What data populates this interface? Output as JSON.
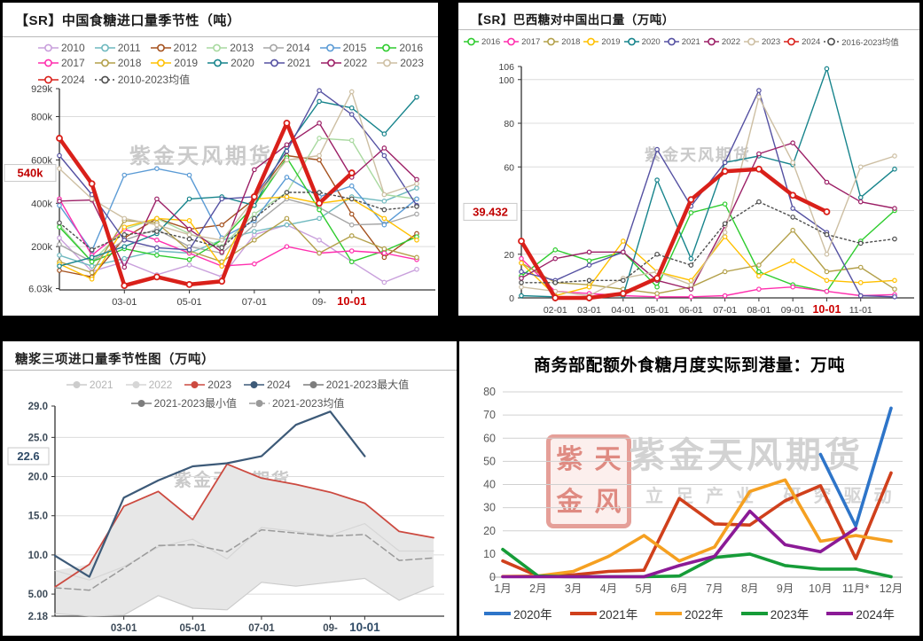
{
  "watermark": {
    "brand": "紫金天风期货",
    "slogan": "立足产业 研究驱动",
    "seal_chars": [
      "紫",
      "天",
      "金",
      "风"
    ]
  },
  "chart_data": [
    {
      "id": "china-sugar-import-seasonality",
      "type": "line",
      "title": "【SR】中国食糖进口量季节性（吨）",
      "unit": "吨 (values in thousands)",
      "current": {
        "label": "540k",
        "value": 540,
        "color": "#c00000"
      },
      "y_axis": {
        "min": 0,
        "max": 929,
        "grid": [
          800,
          600,
          400,
          200
        ],
        "ticks": [
          {
            "v": 929,
            "l": "929k"
          },
          {
            "v": 800,
            "l": "800k"
          },
          {
            "v": 600,
            "l": "600k"
          },
          {
            "v": 400,
            "l": "400k"
          },
          {
            "v": 200,
            "l": "200k"
          },
          {
            "v": 6.03,
            "l": "6.03k"
          }
        ]
      },
      "x_axis": {
        "hl_color": "#cc0000",
        "ticks": [
          {
            "m": 3,
            "label": "03-01"
          },
          {
            "m": 5,
            "label": "05-01"
          },
          {
            "m": 7,
            "label": "07-01"
          },
          {
            "m": 9,
            "label": "09-"
          },
          {
            "m": 10,
            "label": "10-01",
            "hl": true
          }
        ]
      },
      "series": [
        {
          "name": "2010",
          "color": "#c9a0dc",
          "markers": true,
          "values": [
            240,
            85,
            130,
            70,
            115,
            60,
            255,
            300,
            230,
            130,
            35,
            95
          ]
        },
        {
          "name": "2011",
          "color": "#6fb9bf",
          "markers": true,
          "values": [
            160,
            110,
            145,
            180,
            170,
            230,
            270,
            300,
            330,
            430,
            410,
            470
          ]
        },
        {
          "name": "2012",
          "color": "#a5521f",
          "markers": true,
          "values": [
            90,
            60,
            240,
            330,
            280,
            300,
            420,
            620,
            600,
            350,
            150,
            260
          ]
        },
        {
          "name": "2013",
          "color": "#a9d9a0",
          "markers": true,
          "values": [
            300,
            130,
            280,
            330,
            260,
            200,
            350,
            450,
            700,
            690,
            440,
            420
          ]
        },
        {
          "name": "2014",
          "color": "#a6a6a6",
          "markers": true,
          "values": [
            210,
            130,
            230,
            280,
            200,
            170,
            300,
            420,
            380,
            300,
            305,
            350
          ]
        },
        {
          "name": "2015",
          "color": "#5b9bd5",
          "markers": true,
          "values": [
            390,
            180,
            530,
            560,
            530,
            240,
            320,
            520,
            430,
            480,
            300,
            420
          ]
        },
        {
          "name": "2016",
          "color": "#2ecc2e",
          "markers": true,
          "values": [
            290,
            130,
            190,
            160,
            140,
            230,
            390,
            610,
            370,
            130,
            180,
            245
          ]
        },
        {
          "name": "2017",
          "color": "#ff2fae",
          "markers": true,
          "values": [
            420,
            160,
            280,
            230,
            170,
            110,
            120,
            200,
            170,
            180,
            170,
            140
          ]
        },
        {
          "name": "2018",
          "color": "#b3a04a",
          "markers": true,
          "values": [
            130,
            80,
            320,
            310,
            180,
            130,
            230,
            330,
            170,
            250,
            190,
            150
          ]
        },
        {
          "name": "2019",
          "color": "#ffc000",
          "markers": true,
          "values": [
            120,
            50,
            290,
            330,
            320,
            110,
            420,
            430,
            400,
            420,
            330,
            230
          ]
        },
        {
          "name": "2020",
          "color": "#17848c",
          "markers": true,
          "values": [
            110,
            150,
            200,
            260,
            420,
            430,
            390,
            660,
            870,
            840,
            720,
            890
          ]
        },
        {
          "name": "2021",
          "color": "#5551a2",
          "markers": true,
          "values": [
            620,
            440,
            230,
            195,
            185,
            420,
            430,
            640,
            920,
            810,
            620,
            390
          ]
        },
        {
          "name": "2022",
          "color": "#9c1f66",
          "markers": true,
          "values": [
            410,
            415,
            105,
            420,
            280,
            175,
            555,
            670,
            770,
            520,
            655,
            510
          ]
        },
        {
          "name": "2023",
          "color": "#cdbfa3",
          "markers": true,
          "values": [
            560,
            420,
            330,
            300,
            255,
            230,
            420,
            600,
            620,
            915,
            440,
            490
          ]
        },
        {
          "name": "2024",
          "color": "#d9201a",
          "width": 4.5,
          "markers": true,
          "values": [
            700,
            490,
            20,
            60,
            25,
            40,
            430,
            770,
            400,
            540
          ]
        },
        {
          "name": "2010-2023均值",
          "color": "#4d4d4d",
          "dash": "2,3",
          "markers": true,
          "values": [
            310,
            185,
            255,
            270,
            235,
            195,
            330,
            450,
            450,
            420,
            370,
            385
          ]
        }
      ]
    },
    {
      "id": "brazil-sugar-exports-to-china",
      "type": "line",
      "title": "【SR】巴西糖对中国出口量（万吨）",
      "unit": "万吨",
      "current": {
        "label": "39.432",
        "value": 39.432,
        "color": "#c00000"
      },
      "y_axis": {
        "min": 0,
        "max": 106,
        "grid": [
          100,
          80,
          60,
          40,
          20
        ],
        "ticks": [
          {
            "v": 106,
            "l": "106"
          },
          {
            "v": 100,
            "l": "100"
          },
          {
            "v": 80,
            "l": "80"
          },
          {
            "v": 60,
            "l": "60"
          },
          {
            "v": 20,
            "l": "20"
          },
          {
            "v": 0,
            "l": "0"
          }
        ]
      },
      "x_axis": {
        "hl_color": "#cc0000",
        "ticks": [
          {
            "m": 2,
            "label": "02-01"
          },
          {
            "m": 3,
            "label": "03-01"
          },
          {
            "m": 4,
            "label": "04-01"
          },
          {
            "m": 5,
            "label": "05-01"
          },
          {
            "m": 6,
            "label": "06-01"
          },
          {
            "m": 7,
            "label": "07-01"
          },
          {
            "m": 8,
            "label": "08-01"
          },
          {
            "m": 9,
            "label": "09-01"
          },
          {
            "m": 10,
            "label": "10-01",
            "hl": true
          },
          {
            "m": 11,
            "label": "11-01"
          }
        ]
      },
      "series": [
        {
          "name": "2016",
          "color": "#2ecc2e",
          "markers": true,
          "values": [
            10,
            22,
            17,
            21,
            5,
            39,
            43,
            12,
            6,
            3,
            26,
            40
          ]
        },
        {
          "name": "2017",
          "color": "#ff2fae",
          "markers": true,
          "values": [
            18,
            3,
            2,
            1,
            0.5,
            0.5,
            1,
            4,
            5,
            3,
            1,
            1.5
          ]
        },
        {
          "name": "2018",
          "color": "#b3a04a",
          "markers": true,
          "values": [
            16,
            7,
            6,
            4,
            2,
            5,
            12,
            15,
            31,
            12,
            14,
            4
          ]
        },
        {
          "name": "2019",
          "color": "#ffc000",
          "markers": true,
          "values": [
            16,
            1,
            5,
            26,
            12,
            8,
            28,
            10,
            17,
            8,
            7,
            8
          ]
        },
        {
          "name": "2020",
          "color": "#17848c",
          "markers": true,
          "values": [
            1,
            0.5,
            0.5,
            1,
            54,
            18,
            62,
            65,
            61,
            105,
            46,
            59
          ]
        },
        {
          "name": "2021",
          "color": "#5551a2",
          "markers": true,
          "values": [
            12,
            8,
            15,
            21,
            68,
            42,
            62,
            95,
            41,
            30,
            1,
            0.5
          ]
        },
        {
          "name": "2022",
          "color": "#9c1f66",
          "markers": true,
          "values": [
            9,
            18,
            21,
            21,
            8,
            4,
            33,
            66,
            71,
            53,
            44,
            41
          ]
        },
        {
          "name": "2023",
          "color": "#cdbfa3",
          "markers": true,
          "values": [
            5,
            3,
            1,
            9,
            12,
            6,
            30,
            92,
            62,
            20,
            60,
            65
          ]
        },
        {
          "name": "2024",
          "color": "#d9201a",
          "width": 4.5,
          "markers": true,
          "values": [
            26,
            0,
            0,
            2,
            9,
            45,
            58,
            59,
            47,
            39.432
          ]
        },
        {
          "name": "2016-2023均值",
          "color": "#4d4d4d",
          "dash": "2,3",
          "markers": true,
          "values": [
            7,
            7,
            8,
            8,
            20,
            15,
            34,
            44,
            37,
            29,
            25,
            27
          ]
        }
      ]
    },
    {
      "id": "syrup-three-items-import-seasonality",
      "type": "line",
      "title": "糖浆三项进口量季节性图（万吨）",
      "unit": "万吨",
      "current": {
        "label": "22.6",
        "value": 22.6,
        "color": "#2e4a66"
      },
      "y_axis": {
        "min": 2.18,
        "max": 29,
        "grid": [
          25,
          20,
          15,
          10,
          5
        ],
        "ticks": [
          {
            "v": 29,
            "l": "29.0"
          },
          {
            "v": 25,
            "l": "25.0"
          },
          {
            "v": 20,
            "l": "20.0"
          },
          {
            "v": 15,
            "l": "15.0"
          },
          {
            "v": 10,
            "l": "10.0"
          },
          {
            "v": 5,
            "l": "5.00"
          },
          {
            "v": 2.18,
            "l": "2.18"
          }
        ]
      },
      "x_axis": {
        "hl_color": "#2e4a66",
        "ticks": [
          {
            "m": 3,
            "label": "03-01"
          },
          {
            "m": 5,
            "label": "05-01"
          },
          {
            "m": 7,
            "label": "07-01"
          },
          {
            "m": 9,
            "label": "09-"
          },
          {
            "m": 10,
            "label": "10-01",
            "hl": true
          }
        ]
      },
      "band": {
        "max_series": "2021-2023最大值",
        "min_series": "2021-2023最小值",
        "color": "#e7e7e7"
      },
      "series": [
        {
          "name": "2021",
          "color": "#cccccc",
          "muted": true,
          "width": 1.2,
          "values": [
            2.5,
            2.2,
            2.3,
            4.8,
            3.2,
            3.0,
            6.5,
            6.0,
            6.5,
            7.0,
            4.2,
            6.0
          ]
        },
        {
          "name": "2022",
          "color": "#d6d6d6",
          "muted": true,
          "width": 1.2,
          "values": [
            8.0,
            6.8,
            8.5,
            11.0,
            12.0,
            9.5,
            13.5,
            13.0,
            12.5,
            14.0,
            10.5,
            10.5
          ]
        },
        {
          "name": "2023",
          "color": "#cc4a40",
          "width": 1.8,
          "values": [
            5.9,
            8.8,
            16.2,
            18.1,
            14.5,
            21.6,
            19.8,
            19.0,
            18.0,
            16.6,
            13.0,
            12.2
          ]
        },
        {
          "name": "2024",
          "color": "#3d5a78",
          "width": 2.2,
          "values": [
            9.9,
            7.2,
            17.3,
            19.5,
            21.3,
            21.7,
            22.6,
            26.6,
            28.3,
            22.6
          ]
        },
        {
          "name": "2021-2023最大值",
          "color": "#7d7d7d",
          "draw": false,
          "values": [
            8.0,
            8.8,
            16.2,
            18.1,
            14.5,
            21.6,
            19.8,
            19.0,
            18.0,
            16.6,
            13.0,
            12.2
          ]
        },
        {
          "name": "2021-2023最小值",
          "color": "#7d7d7d",
          "draw": false,
          "values": [
            2.5,
            2.2,
            2.3,
            4.8,
            3.2,
            3.0,
            6.5,
            6.0,
            6.5,
            7.0,
            4.2,
            6.0
          ]
        },
        {
          "name": "2021-2023均值",
          "color": "#9a9a9a",
          "dash": "7,4",
          "width": 1.5,
          "values": [
            5.8,
            5.5,
            8.3,
            11.2,
            11.3,
            10.4,
            13.2,
            12.8,
            12.4,
            12.6,
            9.3,
            9.6
          ]
        }
      ]
    },
    {
      "id": "mofcom-out-of-quota-sugar-monthly-arrivals",
      "type": "line",
      "title": "商务部配额外食糖月度实际到港量：万吨",
      "unit": "万吨",
      "y_axis": {
        "min": 0,
        "max": 80,
        "grid": [
          80,
          70,
          60,
          50,
          40,
          30,
          20,
          10
        ],
        "ticks": [
          {
            "v": 80,
            "l": "80"
          },
          {
            "v": 70,
            "l": "70"
          },
          {
            "v": 60,
            "l": "60"
          },
          {
            "v": 50,
            "l": "50"
          },
          {
            "v": 40,
            "l": "40"
          },
          {
            "v": 30,
            "l": "30"
          },
          {
            "v": 20,
            "l": "20"
          },
          {
            "v": 10,
            "l": "10"
          },
          {
            "v": 0,
            "l": "0"
          }
        ]
      },
      "x_axis": {
        "hl_color": "#595959",
        "ticks": [
          {
            "m": 1,
            "label": "1月"
          },
          {
            "m": 2,
            "label": "2月"
          },
          {
            "m": 3,
            "label": "3月"
          },
          {
            "m": 4,
            "label": "4月"
          },
          {
            "m": 5,
            "label": "5月"
          },
          {
            "m": 6,
            "label": "6月"
          },
          {
            "m": 7,
            "label": "7月"
          },
          {
            "m": 8,
            "label": "8月"
          },
          {
            "m": 9,
            "label": "9月"
          },
          {
            "m": 10,
            "label": "10月"
          },
          {
            "m": 11,
            "label": "11月*"
          },
          {
            "m": 12,
            "label": "12月"
          }
        ]
      },
      "series": [
        {
          "name": "2020年",
          "color": "#2e75c9",
          "width": 3.6,
          "values": [
            null,
            null,
            null,
            null,
            null,
            null,
            null,
            null,
            null,
            53,
            22,
            73
          ]
        },
        {
          "name": "2021年",
          "color": "#d0401c",
          "width": 3.6,
          "values": [
            7,
            0.5,
            1,
            2.5,
            3,
            34,
            23,
            22.5,
            33,
            39.5,
            8,
            45
          ]
        },
        {
          "name": "2022年",
          "color": "#f5a021",
          "width": 3.6,
          "values": [
            0.3,
            0.5,
            2.5,
            9,
            18,
            7,
            13,
            37,
            42,
            15.5,
            18,
            15.5
          ]
        },
        {
          "name": "2023年",
          "color": "#169c38",
          "width": 3.6,
          "values": [
            12,
            0.5,
            0.2,
            0.2,
            0.2,
            0.5,
            8.5,
            10,
            5,
            3.5,
            3.5,
            0.2
          ]
        },
        {
          "name": "2024年",
          "color": "#8b1a96",
          "width": 3.6,
          "values": [
            0.2,
            0.2,
            0.2,
            0.2,
            0.2,
            5,
            9,
            28.5,
            14,
            11,
            21,
            null
          ]
        }
      ]
    }
  ]
}
